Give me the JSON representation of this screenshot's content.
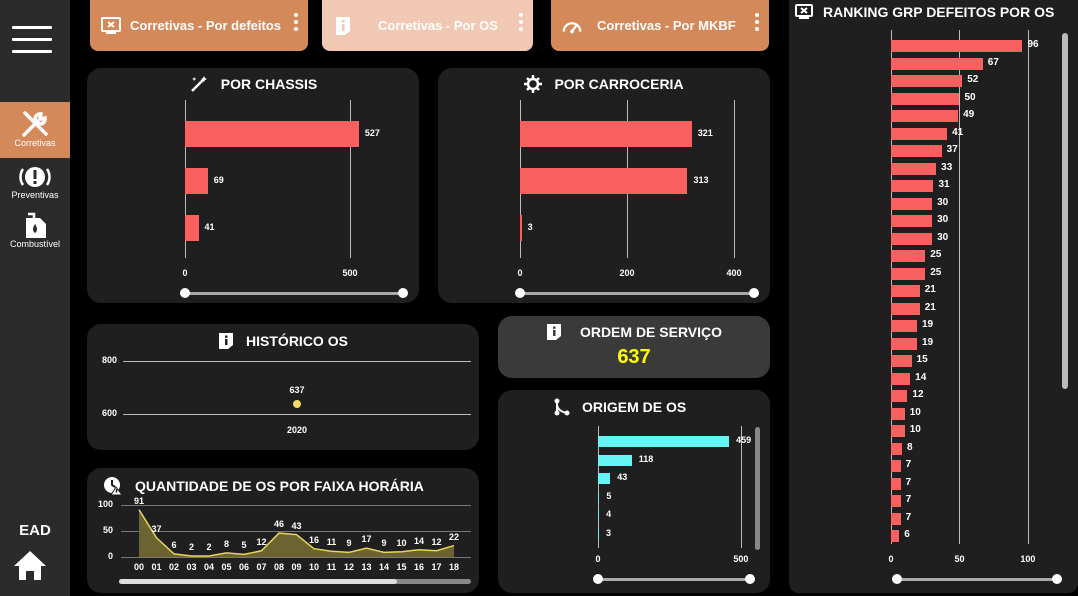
{
  "nav": {
    "items": [
      {
        "label": "Corretivas",
        "icon": "wrench-screwdriver-icon"
      },
      {
        "label": "Preventivas",
        "icon": "alert-circle-icon"
      },
      {
        "label": "Combustível",
        "icon": "fuel-can-icon"
      }
    ],
    "bottom_label": "EAD",
    "home_icon": "home-icon"
  },
  "tabs": [
    {
      "label": "Corretivas - Por defeitos",
      "icon": "screen-x-icon",
      "color": "#d4895b"
    },
    {
      "label": "Corretivas - Por OS",
      "icon": "info-doc-icon",
      "color": "#f0c8b4"
    },
    {
      "label": "Corretivas - Por MKBF",
      "icon": "speedometer-icon",
      "color": "#d4895b"
    }
  ],
  "chassis": {
    "title": "POR CHASSIS",
    "chart_data": {
      "type": "bar",
      "orientation": "horizontal",
      "values": [
        527,
        69,
        41
      ],
      "xticks": [
        0,
        500
      ],
      "xlim": [
        0,
        600
      ]
    }
  },
  "carroceria": {
    "title": "POR CARROCERIA",
    "chart_data": {
      "type": "bar",
      "orientation": "horizontal",
      "values": [
        321,
        313,
        3
      ],
      "xticks": [
        0,
        200,
        400
      ],
      "xlim": [
        0,
        400
      ]
    }
  },
  "historico": {
    "title": "HISTÓRICO OS",
    "chart_data": {
      "type": "scatter",
      "x": [
        "2020"
      ],
      "y": [
        637
      ],
      "yticks": [
        600,
        800
      ],
      "ylim": [
        560,
        800
      ]
    }
  },
  "ordem": {
    "title": "ORDEM DE SERVIÇO",
    "value": "637",
    "value_color": "#ffff00"
  },
  "faixa": {
    "title": "QUANTIDADE DE OS POR FAIXA HORÁRIA",
    "chart_data": {
      "type": "area",
      "categories": [
        "00",
        "01",
        "02",
        "03",
        "04",
        "05",
        "06",
        "07",
        "08",
        "09",
        "10",
        "11",
        "12",
        "13",
        "14",
        "15",
        "16",
        "17",
        "18"
      ],
      "values": [
        91,
        37,
        6,
        2,
        2,
        8,
        5,
        12,
        46,
        43,
        16,
        11,
        9,
        17,
        9,
        10,
        14,
        12,
        22
      ],
      "yticks": [
        0,
        50,
        100
      ],
      "ylim": [
        0,
        100
      ]
    }
  },
  "origem": {
    "title": "ORIGEM DE OS",
    "chart_data": {
      "type": "bar",
      "orientation": "horizontal",
      "values": [
        459,
        118,
        43,
        5,
        4,
        3
      ],
      "xticks": [
        0,
        500
      ],
      "xlim": [
        0,
        700
      ],
      "color": "#66f5f5"
    }
  },
  "ranking": {
    "title": "RANKING GRP DEFEITOS POR OS",
    "chart_data": {
      "type": "bar",
      "orientation": "horizontal",
      "values": [
        96,
        67,
        52,
        50,
        49,
        41,
        37,
        33,
        31,
        30,
        30,
        30,
        25,
        25,
        21,
        21,
        19,
        19,
        15,
        14,
        12,
        10,
        10,
        8,
        7,
        7,
        7,
        7,
        6
      ],
      "xticks": [
        0,
        50,
        100
      ],
      "xlim": [
        0,
        130
      ]
    }
  }
}
